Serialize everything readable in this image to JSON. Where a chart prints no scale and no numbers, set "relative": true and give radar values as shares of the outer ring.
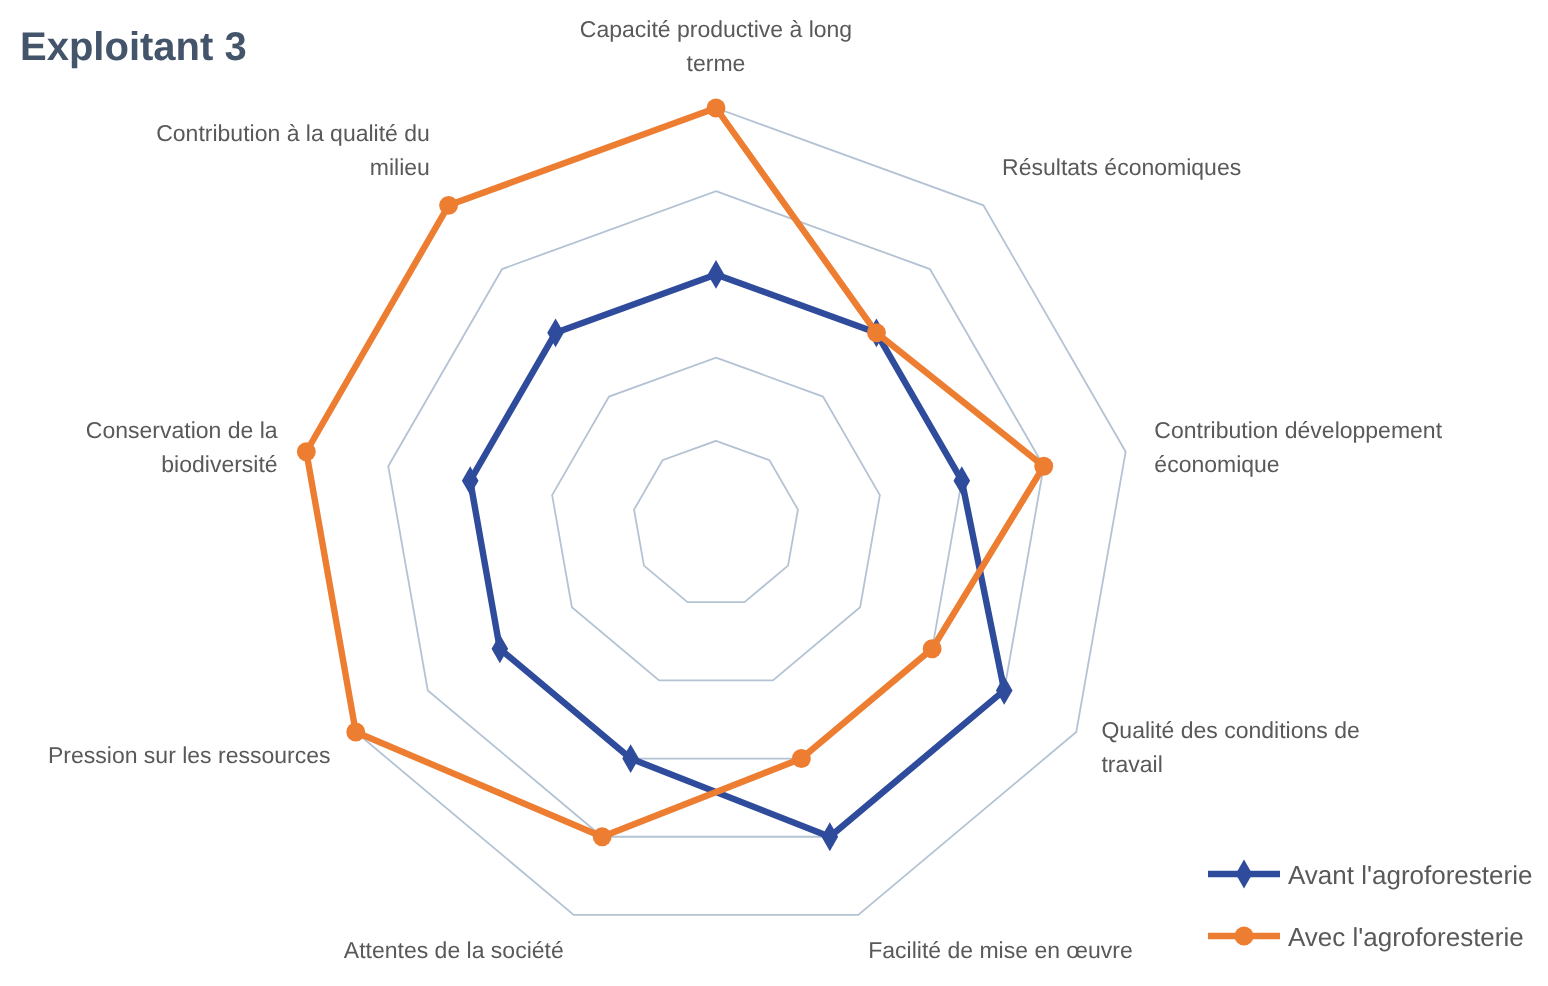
{
  "chart_data": {
    "type": "radar",
    "title": "Exploitant 3",
    "relative": true,
    "legend": "bottom right",
    "grid": true,
    "categories": [
      "Capacité productive à long terme",
      "Résultats économiques",
      "Contribution développement économique",
      "Qualité des conditions de travail",
      "Facilité de mise en œuvre",
      "Attentes de la société",
      "Pression sur les ressources",
      "Conservation de la biodiversité",
      "Contribution à la qualité du milieu"
    ],
    "series": [
      {
        "name": "Avant l'agroforesterie",
        "color": "#2f4b9b",
        "marker": "diamond",
        "values": [
          0.6,
          0.6,
          0.6,
          0.8,
          0.8,
          0.6,
          0.6,
          0.6,
          0.6
        ]
      },
      {
        "name": "Avec l'agroforesterie",
        "color": "#ed7d31",
        "marker": "circle",
        "values": [
          1,
          0.6,
          0.8,
          0.6,
          0.6,
          0.8,
          1,
          1,
          1
        ]
      }
    ]
  }
}
